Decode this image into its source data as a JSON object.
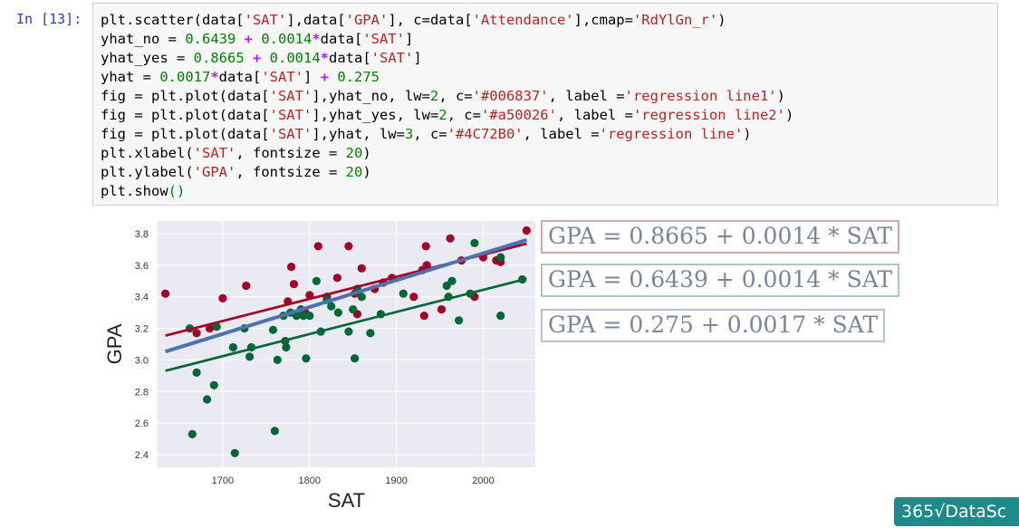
{
  "cell": {
    "prompt": "In [13]:",
    "code_lines": [
      [
        [
          "plt.scatter(data[",
          ""
        ],
        [
          "'SAT'",
          "str"
        ],
        [
          "],data[",
          ""
        ],
        [
          "'GPA'",
          "str"
        ],
        [
          "], c=data[",
          ""
        ],
        [
          "'Attendance'",
          "str"
        ],
        [
          "],cmap=",
          ""
        ],
        [
          "'RdYlGn_r'",
          "str"
        ],
        [
          ")",
          ""
        ]
      ],
      [
        [
          "yhat_no = ",
          ""
        ],
        [
          "0.6439",
          "num"
        ],
        [
          " + ",
          "op"
        ],
        [
          "0.0014",
          "num"
        ],
        [
          "*",
          "op"
        ],
        [
          "data[",
          ""
        ],
        [
          "'SAT'",
          "str"
        ],
        [
          "]",
          ""
        ]
      ],
      [
        [
          "yhat_yes = ",
          ""
        ],
        [
          "0.8665",
          "num"
        ],
        [
          " + ",
          "op"
        ],
        [
          "0.0014",
          "num"
        ],
        [
          "*",
          "op"
        ],
        [
          "data[",
          ""
        ],
        [
          "'SAT'",
          "str"
        ],
        [
          "]",
          ""
        ]
      ],
      [
        [
          "yhat = ",
          ""
        ],
        [
          "0.0017",
          "num"
        ],
        [
          "*",
          "op"
        ],
        [
          "data[",
          ""
        ],
        [
          "'SAT'",
          "str"
        ],
        [
          "] ",
          ""
        ],
        [
          "+ ",
          "op"
        ],
        [
          "0.275",
          "num"
        ]
      ],
      [
        [
          "fig = plt.plot(data[",
          ""
        ],
        [
          "'SAT'",
          "str"
        ],
        [
          "],yhat_no, lw=",
          ""
        ],
        [
          "2",
          "num"
        ],
        [
          ", c=",
          ""
        ],
        [
          "'#006837'",
          "str"
        ],
        [
          ", label =",
          ""
        ],
        [
          "'regression line1'",
          "str"
        ],
        [
          ")",
          ""
        ]
      ],
      [
        [
          "fig = plt.plot(data[",
          ""
        ],
        [
          "'SAT'",
          "str"
        ],
        [
          "],yhat_yes, lw=",
          ""
        ],
        [
          "2",
          "num"
        ],
        [
          ", c=",
          ""
        ],
        [
          "'#a50026'",
          "str"
        ],
        [
          ", label =",
          ""
        ],
        [
          "'regression line2'",
          "str"
        ],
        [
          ")",
          ""
        ]
      ],
      [
        [
          "fig = plt.plot(data[",
          ""
        ],
        [
          "'SAT'",
          "str"
        ],
        [
          "],yhat, lw=",
          ""
        ],
        [
          "3",
          "num"
        ],
        [
          ", c=",
          ""
        ],
        [
          "'#4C72B0'",
          "str"
        ],
        [
          ", label =",
          ""
        ],
        [
          "'regression line'",
          "str"
        ],
        [
          ")",
          ""
        ]
      ],
      [
        [
          "plt.xlabel(",
          ""
        ],
        [
          "'SAT'",
          "str"
        ],
        [
          ", fontsize = ",
          ""
        ],
        [
          "20",
          "num"
        ],
        [
          ")",
          ""
        ]
      ],
      [
        [
          "plt.ylabel(",
          ""
        ],
        [
          "'GPA'",
          "str"
        ],
        [
          ", fontsize = ",
          ""
        ],
        [
          "20",
          "num"
        ],
        [
          ")",
          ""
        ]
      ],
      [
        [
          "plt.show",
          ""
        ],
        [
          "()",
          "paren"
        ]
      ]
    ]
  },
  "equations": {
    "eq1": "GPA = 0.8665 + 0.0014 * SAT",
    "eq2": "GPA = 0.6439 + 0.0014 * SAT",
    "eq3": "GPA = 0.275 + 0.0017 * SAT"
  },
  "logo_text": "365√DataSc",
  "chart_data": {
    "type": "scatter",
    "xlabel": "SAT",
    "ylabel": "GPA",
    "xlim": [
      1625,
      2060
    ],
    "ylim": [
      2.32,
      3.88
    ],
    "xticks": [
      1700,
      1800,
      1900,
      2000
    ],
    "yticks": [
      2.4,
      2.6,
      2.8,
      3.0,
      3.2,
      3.4,
      3.6,
      3.8
    ],
    "grid": true,
    "colors": {
      "green": "#006837",
      "red": "#a50026",
      "blue": "#4C72B0",
      "background": "#eaeaf2"
    },
    "series": [
      {
        "color": "red",
        "points": [
          [
            1634,
            3.42
          ],
          [
            1670,
            3.17
          ],
          [
            1685,
            3.2
          ],
          [
            1700,
            3.39
          ],
          [
            1727,
            3.47
          ],
          [
            1775,
            3.37
          ],
          [
            1779,
            3.59
          ],
          [
            1782,
            3.48
          ],
          [
            1795,
            3.3
          ],
          [
            1800,
            3.41
          ],
          [
            1810,
            3.72
          ],
          [
            1820,
            3.4
          ],
          [
            1832,
            3.52
          ],
          [
            1845,
            3.72
          ],
          [
            1852,
            3.42
          ],
          [
            1855,
            3.29
          ],
          [
            1860,
            3.58
          ],
          [
            1875,
            3.45
          ],
          [
            1885,
            3.49
          ],
          [
            1895,
            3.52
          ],
          [
            1920,
            3.4
          ],
          [
            1930,
            3.57
          ],
          [
            1932,
            3.28
          ],
          [
            1934,
            3.72
          ],
          [
            1935,
            3.6
          ],
          [
            1952,
            3.32
          ],
          [
            1962,
            3.77
          ],
          [
            1975,
            3.63
          ],
          [
            1990,
            3.4
          ],
          [
            2000,
            3.65
          ],
          [
            2015,
            3.63
          ],
          [
            2020,
            3.62
          ],
          [
            2050,
            3.82
          ]
        ]
      },
      {
        "color": "green",
        "points": [
          [
            1662,
            3.2
          ],
          [
            1665,
            2.53
          ],
          [
            1670,
            2.92
          ],
          [
            1682,
            2.75
          ],
          [
            1690,
            2.84
          ],
          [
            1693,
            3.21
          ],
          [
            1712,
            3.08
          ],
          [
            1714,
            2.41
          ],
          [
            1725,
            3.2
          ],
          [
            1731,
            3.02
          ],
          [
            1733,
            3.08
          ],
          [
            1758,
            3.19
          ],
          [
            1760,
            2.55
          ],
          [
            1763,
            3.0
          ],
          [
            1770,
            3.28
          ],
          [
            1772,
            3.12
          ],
          [
            1773,
            3.08
          ],
          [
            1778,
            3.3
          ],
          [
            1785,
            3.28
          ],
          [
            1790,
            3.32
          ],
          [
            1793,
            3.28
          ],
          [
            1796,
            3.01
          ],
          [
            1800,
            3.28
          ],
          [
            1808,
            3.5
          ],
          [
            1813,
            3.18
          ],
          [
            1820,
            3.38
          ],
          [
            1825,
            3.34
          ],
          [
            1833,
            3.3
          ],
          [
            1845,
            3.18
          ],
          [
            1850,
            3.32
          ],
          [
            1852,
            3.01
          ],
          [
            1855,
            3.45
          ],
          [
            1860,
            3.4
          ],
          [
            1870,
            3.17
          ],
          [
            1882,
            3.29
          ],
          [
            1908,
            3.42
          ],
          [
            1958,
            3.47
          ],
          [
            1960,
            3.4
          ],
          [
            1964,
            3.5
          ],
          [
            1972,
            3.25
          ],
          [
            1985,
            3.42
          ],
          [
            1990,
            3.74
          ],
          [
            2020,
            3.28
          ],
          [
            2045,
            3.51
          ],
          [
            2020,
            3.65
          ]
        ]
      }
    ],
    "lines": [
      {
        "name": "regression line1",
        "color": "green",
        "lw": 2,
        "intercept": 0.6439,
        "slope": 0.0014
      },
      {
        "name": "regression line2",
        "color": "red",
        "lw": 2,
        "intercept": 0.8665,
        "slope": 0.0014
      },
      {
        "name": "regression line",
        "color": "blue",
        "lw": 3,
        "intercept": 0.275,
        "slope": 0.0017
      }
    ],
    "line_x_range": [
      1634,
      2050
    ]
  }
}
